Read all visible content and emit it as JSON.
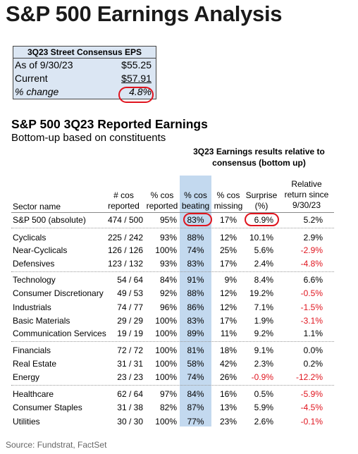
{
  "title": "S&P 500 Earnings Analysis",
  "eps_box": {
    "header": "3Q23 Street Consensus EPS",
    "rows": [
      {
        "label": "As of 9/30/23",
        "value": "$55.25"
      },
      {
        "label": "Current",
        "value": "$57.91"
      },
      {
        "label": "% change",
        "value": "4.8%"
      }
    ]
  },
  "section": {
    "title": "S&P 500 3Q23 Reported Earnings",
    "subtitle": "Bottom-up based on constituents",
    "results_header": "3Q23 Earnings results relative to consensus (bottom up)"
  },
  "columns": {
    "sector": "Sector name",
    "cos_reported": "# cos reported",
    "pct_reported": "% cos reported",
    "pct_beating": "% cos beating",
    "pct_missing": "% cos missing",
    "surprise": "Surprise (%)",
    "relative": "Relative return since 9/30/23"
  },
  "rows": [
    {
      "sector": "S&P 500 (absolute)",
      "cos": "474 / 500",
      "rep": "95%",
      "beat": "83%",
      "miss": "17%",
      "surp": "6.9%",
      "rel": "5.2%"
    },
    {
      "sector": "Cyclicals",
      "cos": "225 / 242",
      "rep": "93%",
      "beat": "88%",
      "miss": "12%",
      "surp": "10.1%",
      "rel": "2.9%"
    },
    {
      "sector": "Near-Cyclicals",
      "cos": "126 / 126",
      "rep": "100%",
      "beat": "74%",
      "miss": "25%",
      "surp": "5.6%",
      "rel": "-2.9%"
    },
    {
      "sector": "Defensives",
      "cos": "123 / 132",
      "rep": "93%",
      "beat": "83%",
      "miss": "17%",
      "surp": "2.4%",
      "rel": "-4.8%"
    },
    {
      "sector": "Technology",
      "cos": "54 / 64",
      "rep": "84%",
      "beat": "91%",
      "miss": "9%",
      "surp": "8.4%",
      "rel": "6.6%"
    },
    {
      "sector": "Consumer Discretionary",
      "cos": "49 / 53",
      "rep": "92%",
      "beat": "88%",
      "miss": "12%",
      "surp": "19.2%",
      "rel": "-0.5%"
    },
    {
      "sector": "Industrials",
      "cos": "74 / 77",
      "rep": "96%",
      "beat": "86%",
      "miss": "12%",
      "surp": "7.1%",
      "rel": "-1.5%"
    },
    {
      "sector": "Basic Materials",
      "cos": "29 / 29",
      "rep": "100%",
      "beat": "83%",
      "miss": "17%",
      "surp": "1.9%",
      "rel": "-3.1%"
    },
    {
      "sector": "Communication Services",
      "cos": "19 / 19",
      "rep": "100%",
      "beat": "89%",
      "miss": "11%",
      "surp": "9.2%",
      "rel": "1.1%"
    },
    {
      "sector": "Financials",
      "cos": "72 / 72",
      "rep": "100%",
      "beat": "81%",
      "miss": "18%",
      "surp": "9.1%",
      "rel": "0.0%"
    },
    {
      "sector": "Real Estate",
      "cos": "31 / 31",
      "rep": "100%",
      "beat": "58%",
      "miss": "42%",
      "surp": "2.3%",
      "rel": "0.2%"
    },
    {
      "sector": "Energy",
      "cos": "23 / 23",
      "rep": "100%",
      "beat": "74%",
      "miss": "26%",
      "surp": "-0.9%",
      "rel": "-12.2%"
    },
    {
      "sector": "Healthcare",
      "cos": "62 / 64",
      "rep": "97%",
      "beat": "84%",
      "miss": "16%",
      "surp": "0.5%",
      "rel": "-5.9%"
    },
    {
      "sector": "Consumer Staples",
      "cos": "31 / 38",
      "rep": "82%",
      "beat": "87%",
      "miss": "13%",
      "surp": "5.9%",
      "rel": "-4.5%"
    },
    {
      "sector": "Utilities",
      "cos": "30 / 30",
      "rep": "100%",
      "beat": "77%",
      "miss": "23%",
      "surp": "2.6%",
      "rel": "-0.1%"
    }
  ],
  "source": "Source: Fundstrat, FactSet",
  "colors": {
    "highlight_blue": "#c3d9ef",
    "box_blue": "#dbe6f3",
    "negative_red": "#e0141e",
    "circle_red": "#e0141e"
  }
}
